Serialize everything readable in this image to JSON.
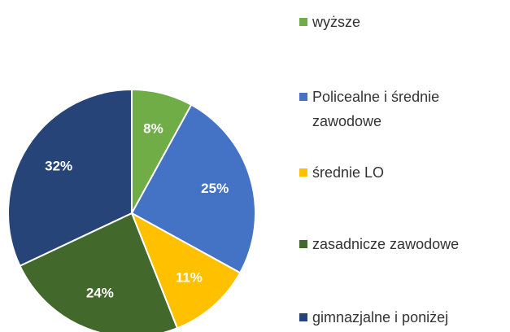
{
  "chart_data": {
    "type": "pie",
    "categories": [
      "wyższe",
      "Policealne i średnie zawodowe",
      "średnie LO",
      "zasadnicze zawodowe",
      "gimnazjalne i poniżej"
    ],
    "values": [
      8,
      25,
      11,
      24,
      32
    ],
    "value_labels": [
      "8%",
      "25%",
      "11%",
      "24%",
      "32%"
    ],
    "colors": [
      "#70ad47",
      "#4472c4",
      "#ffc000",
      "#43682b",
      "#264478"
    ],
    "legend": "right"
  }
}
